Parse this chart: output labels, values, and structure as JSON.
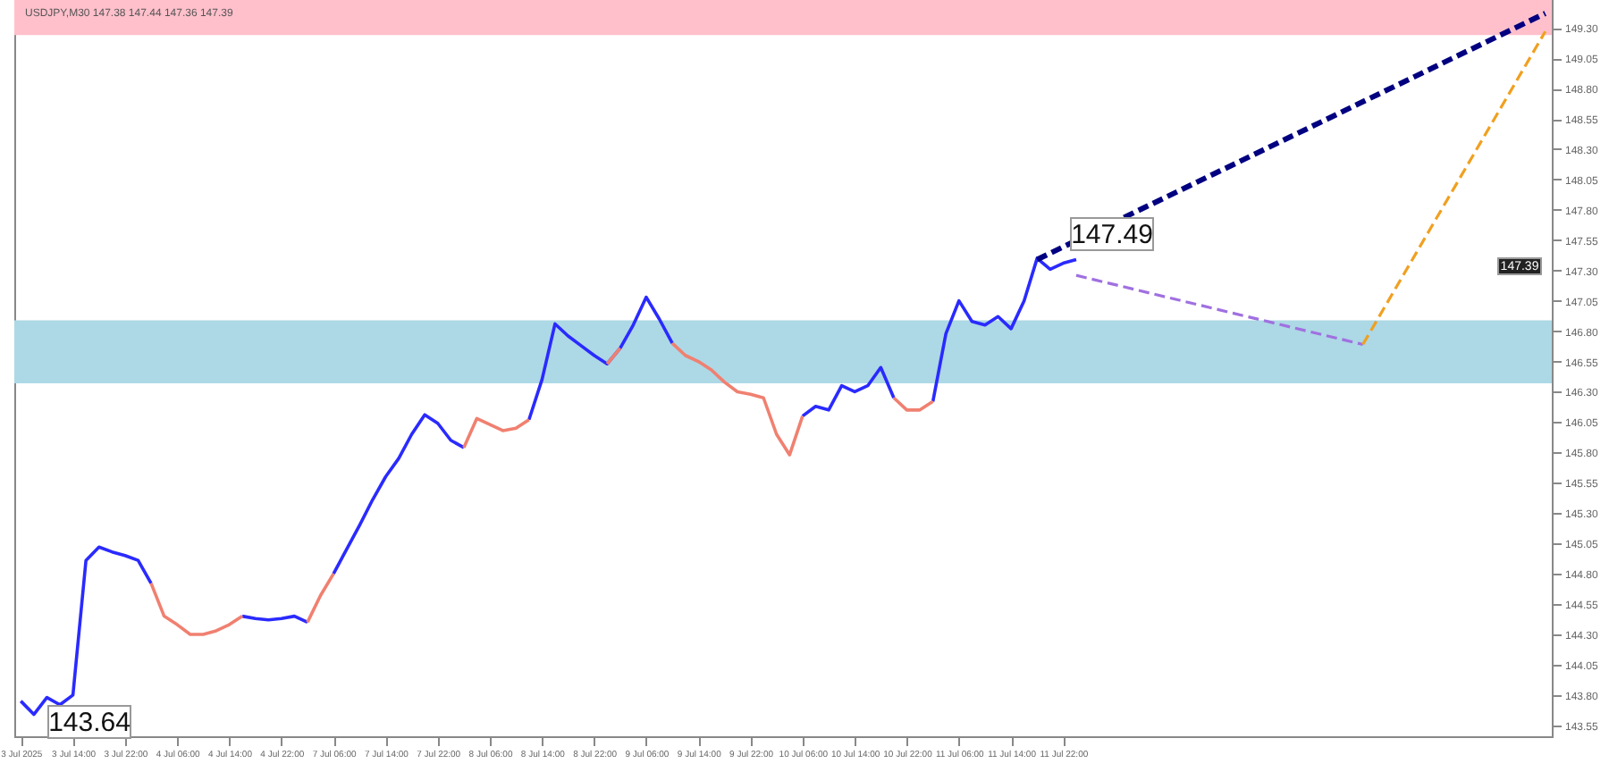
{
  "chart_data": {
    "type": "line",
    "title": "USDJPY,M30 147.38 147.44 147.36 147.39",
    "categories": [
      "3 Jul 2025",
      null,
      null,
      null,
      "3 Jul 14:00",
      null,
      null,
      null,
      "3 Jul 22:00",
      null,
      null,
      null,
      "4 Jul 06:00",
      null,
      null,
      null,
      "4 Jul 14:00",
      null,
      null,
      null,
      "4 Jul 22:00",
      null,
      null,
      null,
      "7 Jul 06:00",
      null,
      null,
      null,
      "7 Jul 14:00",
      null,
      null,
      null,
      "7 Jul 22:00",
      null,
      null,
      null,
      "8 Jul 06:00",
      null,
      null,
      null,
      "8 Jul 14:00",
      null,
      null,
      null,
      "8 Jul 22:00",
      null,
      null,
      null,
      "9 Jul 06:00",
      null,
      null,
      null,
      "9 Jul 14:00",
      null,
      null,
      null,
      "9 Jul 22:00",
      null,
      null,
      null,
      "10 Jul 06:00",
      null,
      null,
      null,
      "10 Jul 14:00",
      null,
      null,
      null,
      "10 Jul 22:00",
      null,
      null,
      null,
      "11 Jul 06:00",
      null,
      null,
      null,
      "11 Jul 14:00",
      null,
      null,
      null,
      "11 Jul 22:00",
      null,
      null,
      null,
      null,
      null,
      null,
      null,
      null,
      null,
      null,
      null,
      null,
      null,
      null,
      null,
      null,
      null,
      null,
      null,
      null,
      null,
      null,
      null,
      null,
      null,
      null,
      null,
      null,
      null,
      null,
      null,
      null,
      null,
      null,
      null,
      null,
      null
    ],
    "ylim": [
      143.46,
      149.53
    ],
    "yticks": [
      {
        "value": 143.55,
        "label": "143.55"
      },
      {
        "value": 143.8,
        "label": "143.80"
      },
      {
        "value": 144.05,
        "label": "144.05"
      },
      {
        "value": 144.3,
        "label": "144.30"
      },
      {
        "value": 144.55,
        "label": "144.55"
      },
      {
        "value": 144.8,
        "label": "144.80"
      },
      {
        "value": 145.05,
        "label": "145.05"
      },
      {
        "value": 145.3,
        "label": "145.30"
      },
      {
        "value": 145.55,
        "label": "145.55"
      },
      {
        "value": 145.8,
        "label": "145.80"
      },
      {
        "value": 146.05,
        "label": "146.05"
      },
      {
        "value": 146.3,
        "label": "146.30"
      },
      {
        "value": 146.55,
        "label": "146.55"
      },
      {
        "value": 146.8,
        "label": "146.80"
      },
      {
        "value": 147.05,
        "label": "147.05"
      },
      {
        "value": 147.3,
        "label": "147.30"
      },
      {
        "value": 147.55,
        "label": "147.55"
      },
      {
        "value": 147.8,
        "label": "147.80"
      },
      {
        "value": 148.05,
        "label": "148.05"
      },
      {
        "value": 148.3,
        "label": "148.30"
      },
      {
        "value": 148.55,
        "label": "148.55"
      },
      {
        "value": 148.8,
        "label": "148.80"
      },
      {
        "value": 149.05,
        "label": "149.05"
      },
      {
        "value": 149.3,
        "label": "149.30"
      }
    ],
    "bands": [
      {
        "axis": "y",
        "from": 149.24,
        "to": 149.53,
        "color": "#ffc0cb"
      },
      {
        "axis": "y",
        "from": 146.37,
        "to": 146.89,
        "color": "#add8e6"
      }
    ],
    "series": [
      {
        "color": "#2a2aff",
        "values": [
          143.75,
          143.64,
          143.78,
          143.72,
          143.8,
          144.91,
          145.02,
          144.98,
          144.95,
          144.91,
          144.72,
          null,
          null,
          null,
          null,
          null,
          null,
          144.45,
          144.43,
          144.42,
          144.43,
          144.45,
          144.4,
          null,
          144.8,
          145.0,
          145.2,
          145.41,
          145.6,
          145.75,
          145.95,
          146.11,
          146.04,
          145.9,
          145.84,
          null,
          null,
          null,
          null,
          146.07,
          146.4,
          146.86,
          146.76,
          146.68,
          146.6,
          146.53,
          146.66,
          146.85,
          147.08,
          146.9,
          146.7,
          null,
          null,
          null,
          null,
          null,
          null,
          null,
          null,
          null,
          146.1,
          146.18,
          146.15,
          146.35,
          146.3,
          146.35,
          146.5,
          146.25,
          null,
          null,
          146.22,
          146.78,
          147.05,
          146.88,
          146.85,
          146.92,
          146.82,
          147.05,
          147.4,
          147.31,
          147.36,
          147.39,
          null,
          null,
          null,
          null,
          null,
          null,
          null,
          null,
          null,
          null,
          null,
          null,
          null,
          null,
          null,
          null,
          null,
          null,
          null,
          null,
          null,
          null,
          null,
          null,
          null,
          null,
          null,
          null,
          null,
          null,
          null,
          null,
          null,
          null,
          null,
          null
        ]
      },
      {
        "color": "#f08070",
        "values": [
          null,
          null,
          null,
          null,
          null,
          null,
          null,
          null,
          null,
          null,
          144.72,
          144.45,
          144.38,
          144.3,
          144.3,
          144.33,
          144.38,
          144.45,
          null,
          null,
          null,
          null,
          144.4,
          144.62,
          144.8,
          null,
          null,
          null,
          null,
          null,
          null,
          null,
          null,
          null,
          145.84,
          146.08,
          146.03,
          145.98,
          146.0,
          146.07,
          null,
          null,
          null,
          null,
          null,
          146.53,
          146.66,
          null,
          null,
          null,
          146.7,
          146.6,
          146.55,
          146.48,
          146.38,
          146.3,
          146.28,
          146.25,
          145.95,
          145.78,
          146.1,
          null,
          null,
          null,
          null,
          null,
          null,
          146.25,
          146.15,
          146.15,
          146.22,
          null,
          null,
          null,
          null,
          null,
          null,
          null,
          null,
          null,
          null,
          null,
          null,
          null,
          null,
          null,
          null,
          null,
          null,
          null,
          null,
          null,
          null,
          null,
          null,
          null,
          null,
          null,
          null,
          null,
          null,
          null,
          null,
          null,
          null,
          null,
          null,
          null,
          null,
          null,
          null,
          null,
          null,
          null,
          null,
          null,
          null,
          null
        ]
      },
      {
        "color": "#000080",
        "line_style": "dashed",
        "values": [
          null,
          null,
          null,
          null,
          null,
          null,
          null,
          null,
          null,
          null,
          null,
          null,
          null,
          null,
          null,
          null,
          null,
          null,
          null,
          null,
          null,
          null,
          null,
          null,
          null,
          null,
          null,
          null,
          null,
          null,
          null,
          null,
          null,
          null,
          null,
          null,
          null,
          null,
          null,
          null,
          null,
          null,
          null,
          null,
          null,
          null,
          null,
          null,
          null,
          null,
          null,
          null,
          null,
          null,
          null,
          null,
          null,
          null,
          null,
          null,
          null,
          null,
          null,
          null,
          null,
          null,
          null,
          null,
          null,
          null,
          null,
          null,
          null,
          null,
          null,
          null,
          null,
          null,
          147.39,
          null,
          null,
          null,
          null,
          null,
          null,
          null,
          null,
          null,
          null,
          null,
          null,
          null,
          null,
          null,
          null,
          null,
          null,
          null,
          null,
          null,
          null,
          null,
          null,
          null,
          null,
          null,
          null,
          null,
          null,
          null,
          null,
          null,
          null,
          null,
          null,
          null,
          null,
          149.42
        ]
      },
      {
        "color": "#a070e0",
        "line_style": "dashed",
        "values": [
          null,
          null,
          null,
          null,
          null,
          null,
          null,
          null,
          null,
          null,
          null,
          null,
          null,
          null,
          null,
          null,
          null,
          null,
          null,
          null,
          null,
          null,
          null,
          null,
          null,
          null,
          null,
          null,
          null,
          null,
          null,
          null,
          null,
          null,
          null,
          null,
          null,
          null,
          null,
          null,
          null,
          null,
          null,
          null,
          null,
          null,
          null,
          null,
          null,
          null,
          null,
          null,
          null,
          null,
          null,
          null,
          null,
          null,
          null,
          null,
          null,
          null,
          null,
          null,
          null,
          null,
          null,
          null,
          null,
          null,
          null,
          null,
          null,
          null,
          null,
          null,
          null,
          null,
          null,
          null,
          null,
          147.26,
          null,
          null,
          null,
          null,
          null,
          null,
          null,
          null,
          null,
          null,
          null,
          null,
          null,
          null,
          null,
          null,
          null,
          null,
          null,
          null,
          null,
          146.69,
          null,
          null,
          null,
          null,
          null,
          null,
          null,
          null,
          null,
          null,
          null,
          null,
          null,
          null
        ]
      },
      {
        "color": "#f0a020",
        "line_style": "dashed",
        "values": [
          null,
          null,
          null,
          null,
          null,
          null,
          null,
          null,
          null,
          null,
          null,
          null,
          null,
          null,
          null,
          null,
          null,
          null,
          null,
          null,
          null,
          null,
          null,
          null,
          null,
          null,
          null,
          null,
          null,
          null,
          null,
          null,
          null,
          null,
          null,
          null,
          null,
          null,
          null,
          null,
          null,
          null,
          null,
          null,
          null,
          null,
          null,
          null,
          null,
          null,
          null,
          null,
          null,
          null,
          null,
          null,
          null,
          null,
          null,
          null,
          null,
          null,
          null,
          null,
          null,
          null,
          null,
          null,
          null,
          null,
          null,
          null,
          null,
          null,
          null,
          null,
          null,
          null,
          null,
          null,
          null,
          null,
          null,
          null,
          null,
          null,
          null,
          null,
          null,
          null,
          null,
          null,
          null,
          null,
          null,
          null,
          null,
          null,
          null,
          null,
          null,
          null,
          null,
          146.69,
          null,
          null,
          null,
          null,
          null,
          null,
          null,
          null,
          null,
          null,
          null,
          null,
          null,
          149.27
        ]
      }
    ],
    "annotations": [
      "143.64",
      "147.49",
      "147.39"
    ]
  }
}
